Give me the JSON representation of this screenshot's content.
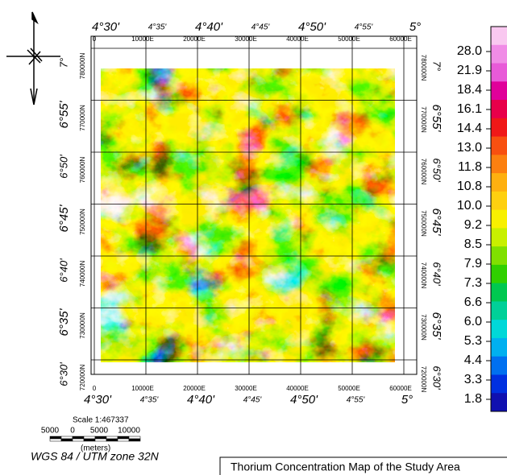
{
  "title": "Thorium Concentration Map of the Study Area",
  "legend": {
    "labels": [
      "28.0",
      "21.9",
      "18.4",
      "16.1",
      "14.4",
      "13.0",
      "11.8",
      "10.8",
      "10.0",
      "9.2",
      "8.5",
      "7.9",
      "7.3",
      "6.6",
      "6.0",
      "5.3",
      "4.4",
      "3.3",
      "1.8"
    ]
  },
  "top_axis": {
    "degree_labels": [
      "4°30'",
      "4°35'",
      "4°40'",
      "4°45'",
      "4°50'",
      "4°55'",
      "5°"
    ],
    "utm_labels": [
      "0",
      "10000E",
      "20000E",
      "30000E",
      "40000E",
      "50000E",
      "60000E"
    ]
  },
  "bottom_axis": {
    "degree_labels": [
      "4°30'",
      "4°35'",
      "4°40'",
      "4°45'",
      "4°50'",
      "4°55'",
      "5°"
    ],
    "utm_labels": [
      "0",
      "10000E",
      "20000E",
      "30000E",
      "40000E",
      "50000E",
      "60000E"
    ]
  },
  "left_axis": {
    "degree_labels": [
      "7°",
      "6°55'",
      "6°50'",
      "6°45'",
      "6°40'",
      "6°35'",
      "6°30'"
    ],
    "utm_labels": [
      "780000N",
      "770000N",
      "760000N",
      "750000N",
      "740000N",
      "730000N",
      "720000N"
    ]
  },
  "right_axis": {
    "degree_labels": [
      "7°",
      "6°55'",
      "6°50'",
      "6°45'",
      "6°40'",
      "6°35'",
      "6°30'"
    ],
    "utm_labels": [
      "780000N",
      "770000N",
      "760000N",
      "750000N",
      "740000N",
      "730000N",
      "720000N"
    ]
  },
  "scale": {
    "text": "Scale 1:467337",
    "bar_labels": [
      "5000",
      "0",
      "5000",
      "10000"
    ],
    "unit": "(meters)"
  },
  "projection": "WGS 84 / UTM zone 32N"
}
